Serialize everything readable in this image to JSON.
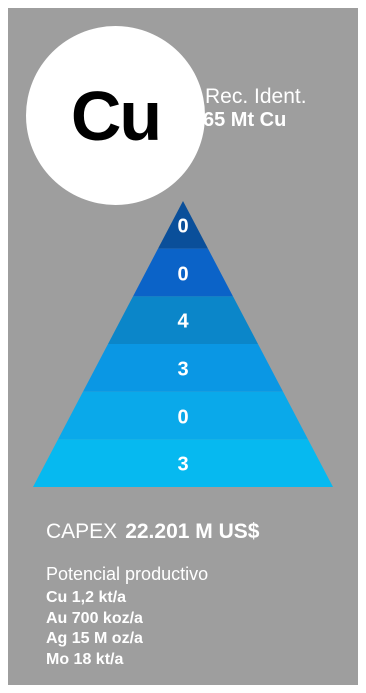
{
  "card": {
    "element_symbol": "Cu",
    "rec_label": "Rec. Ident.",
    "rec_value": "65 Mt Cu"
  },
  "pyramid": {
    "levels": [
      "0",
      "0",
      "4",
      "3",
      "0",
      "3"
    ],
    "colors": [
      "#0a4f9a",
      "#0b63c8",
      "#0b86c9",
      "#0a97e4",
      "#0aa9ea",
      "#06b9f0"
    ]
  },
  "capex": {
    "label": "CAPEX",
    "value": "22.201 M US$"
  },
  "potencial": {
    "title": "Potencial productivo",
    "items": [
      "Cu 1,2 kt/a",
      "Au 700 koz/a",
      "Ag 15 M oz/a",
      "Mo 18 kt/a"
    ]
  },
  "colors": {
    "card_background": "#9e9e9e",
    "circle": "#ffffff"
  }
}
